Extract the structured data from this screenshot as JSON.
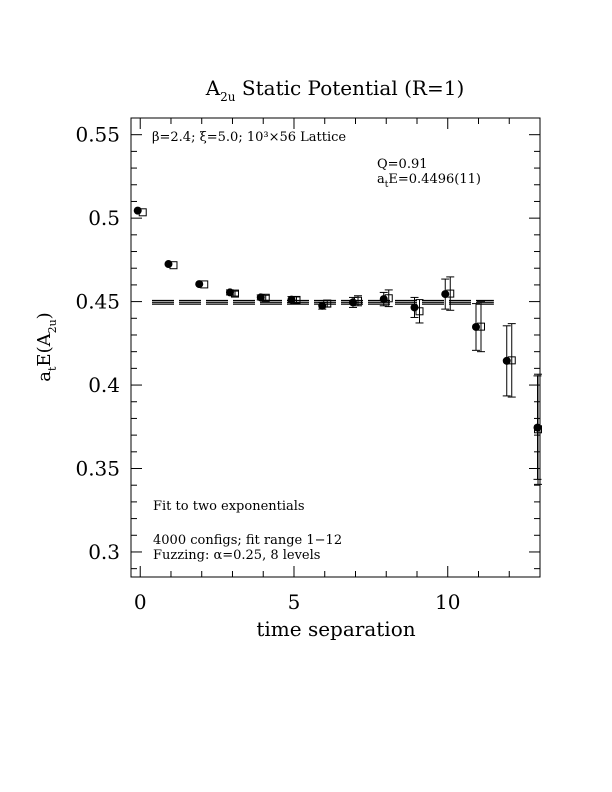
{
  "chart_data": {
    "type": "scatter",
    "title": {
      "main": "A",
      "sub": "2u",
      "rest": " Static Potential (R=1)"
    },
    "xlabel": "time separation",
    "ylabel": {
      "a": "a",
      "a_sub": "t",
      "e": "E(A",
      "e_sub": "2u",
      "close": ")"
    },
    "xlim": [
      -0.3,
      13.0
    ],
    "ylim": [
      0.285,
      0.56
    ],
    "x_ticks": [
      0,
      5,
      10
    ],
    "x_tick_labels": [
      "0",
      "5",
      "10"
    ],
    "y_ticks": [
      0.3,
      0.35,
      0.4,
      0.45,
      0.5,
      0.55
    ],
    "y_tick_labels": [
      "0.3",
      "0.35",
      "0.4",
      "0.45",
      "0.5",
      "0.55"
    ],
    "annotations": {
      "lattice": "β=2.4; ξ=5.0; 10³×56 Lattice",
      "q": "Q=0.91",
      "fit_value": {
        "pre": "a",
        "sub": "t",
        "post": "E=0.4496(11)"
      },
      "fit_type": "Fit to two exponentials",
      "configs": "4000 configs; fit range 1−12",
      "fuzzing": "Fuzzing: α=0.25, 8 levels"
    },
    "fit_line": {
      "y": 0.4496,
      "err": 0.0011,
      "x_range": [
        0.9,
        11.5
      ]
    },
    "series": [
      {
        "marker": "filled-circle",
        "x": [
          0,
          1,
          2,
          3,
          4,
          5,
          6,
          7,
          8,
          9,
          10,
          11,
          12,
          13
        ],
        "y": [
          0.5045,
          0.4725,
          0.4605,
          0.4555,
          0.4525,
          0.4512,
          0.4475,
          0.4495,
          0.4515,
          0.4465,
          0.4545,
          0.4348,
          0.4145,
          0.3745
        ],
        "err": [
          0.001,
          0.001,
          0.001,
          0.0015,
          0.0015,
          0.0018,
          0.002,
          0.003,
          0.004,
          0.006,
          0.009,
          0.014,
          0.021,
          0.031
        ]
      },
      {
        "marker": "open-square",
        "x": [
          0,
          1,
          2,
          3,
          4,
          5,
          6,
          7,
          8,
          9,
          10,
          11,
          12,
          13
        ],
        "y": [
          0.5035,
          0.4718,
          0.4603,
          0.4548,
          0.4523,
          0.451,
          0.4488,
          0.4505,
          0.452,
          0.4442,
          0.4548,
          0.435,
          0.4148,
          0.3735
        ],
        "err": [
          0.001,
          0.001,
          0.001,
          0.0015,
          0.0015,
          0.0018,
          0.002,
          0.003,
          0.005,
          0.007,
          0.01,
          0.015,
          0.022,
          0.033
        ]
      }
    ]
  }
}
